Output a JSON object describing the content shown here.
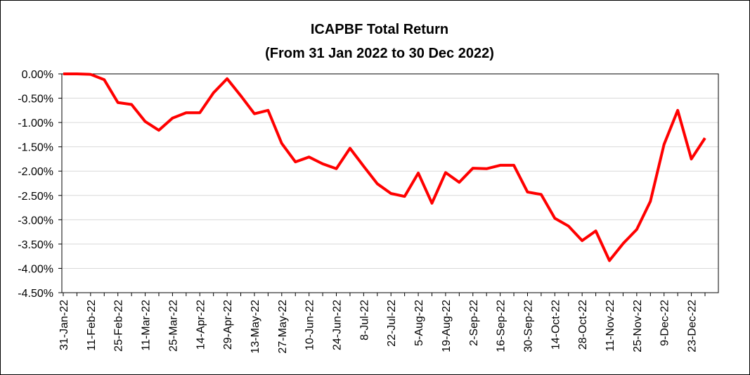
{
  "chart_data": {
    "type": "line",
    "title": "ICAPBF Total Return",
    "subtitle": "(From 31 Jan 2022 to 30 Dec 2022)",
    "categories": [
      "31-Jan-22",
      null,
      "11-Feb-22",
      null,
      "25-Feb-22",
      null,
      "11-Mar-22",
      null,
      "25-Mar-22",
      null,
      "14-Apr-22",
      null,
      "29-Apr-22",
      null,
      "13-May-22",
      null,
      "27-May-22",
      null,
      "10-Jun-22",
      null,
      "24-Jun-22",
      null,
      "8-Jul-22",
      null,
      "22-Jul-22",
      null,
      "5-Aug-22",
      null,
      "19-Aug-22",
      null,
      "2-Sep-22",
      null,
      "16-Sep-22",
      null,
      "30-Sep-22",
      null,
      "14-Oct-22",
      null,
      "28-Oct-22",
      null,
      "11-Nov-22",
      null,
      "25-Nov-22",
      null,
      "9-Dec-22",
      null,
      "23-Dec-22",
      null
    ],
    "series": [
      {
        "name": "ICAPBF",
        "color": "#ff0000",
        "values": [
          0,
          0,
          -0.01,
          -0.12,
          -0.59,
          -0.63,
          -0.98,
          -1.16,
          -0.91,
          -0.8,
          -0.8,
          -0.39,
          -0.1,
          -0.45,
          -0.82,
          -0.75,
          -1.43,
          -1.81,
          -1.71,
          -1.85,
          -1.95,
          -1.53,
          -1.9,
          -2.26,
          -2.46,
          -2.52,
          -2.04,
          -2.66,
          -2.03,
          -2.23,
          -1.94,
          -1.95,
          -1.88,
          -1.88,
          -2.43,
          -2.48,
          -2.97,
          -3.13,
          -3.43,
          -3.23,
          -3.84,
          -3.49,
          -3.2,
          -2.62,
          -1.45,
          -0.75,
          -1.75,
          -1.32
        ]
      }
    ],
    "ylim": [
      -4.5,
      0
    ],
    "yticks": [
      {
        "value": 0,
        "label": "0.00%"
      },
      {
        "value": -0.5,
        "label": "-0.50%"
      },
      {
        "value": -1,
        "label": "-1.00%"
      },
      {
        "value": -1.5,
        "label": "-1.50%"
      },
      {
        "value": -2,
        "label": "-2.00%"
      },
      {
        "value": -2.5,
        "label": "-2.50%"
      },
      {
        "value": -3,
        "label": "-3.00%"
      },
      {
        "value": -3.5,
        "label": "-3.50%"
      },
      {
        "value": -4,
        "label": "-4.00%"
      },
      {
        "value": -4.5,
        "label": "-4.50%"
      }
    ],
    "grid": true
  }
}
